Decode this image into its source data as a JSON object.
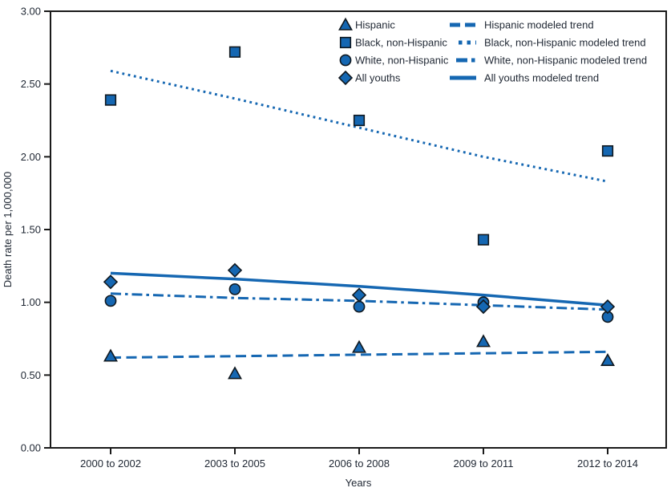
{
  "chart_data": {
    "type": "scatter",
    "title": "",
    "xlabel": "Years",
    "ylabel": "Death rate per 1,000,000",
    "categories": [
      "2000 to 2002",
      "2003 to 2005",
      "2006 to 2008",
      "2009 to 2011",
      "2012 to 2014"
    ],
    "ylim": [
      0.0,
      3.0
    ],
    "ytick_step": 0.5,
    "ytick_labels": [
      "0.00",
      "0.50",
      "1.00",
      "1.50",
      "2.00",
      "2.50",
      "3.00"
    ],
    "grid": false,
    "legend_position": "top-right-inside",
    "series": [
      {
        "name": "Hispanic",
        "marker": "triangle",
        "values": [
          0.63,
          0.51,
          0.69,
          0.73,
          0.6
        ]
      },
      {
        "name": "Black, non-Hispanic",
        "marker": "square",
        "values": [
          2.39,
          2.72,
          2.25,
          1.43,
          2.04
        ]
      },
      {
        "name": "White, non-Hispanic",
        "marker": "circle",
        "values": [
          1.01,
          1.09,
          0.97,
          1.0,
          0.9
        ]
      },
      {
        "name": "All youths",
        "marker": "diamond",
        "values": [
          1.14,
          1.22,
          1.05,
          0.97,
          0.97
        ]
      }
    ],
    "trend_series": [
      {
        "name": "Hispanic modeled trend",
        "style": "dashed",
        "values": [
          0.62,
          0.63,
          0.64,
          0.65,
          0.66
        ]
      },
      {
        "name": "Black, non-Hispanic modeled trend",
        "style": "dotted",
        "values": [
          2.59,
          2.4,
          2.2,
          2.0,
          1.83
        ]
      },
      {
        "name": "White, non-Hispanic modeled trend",
        "style": "dashdot",
        "values": [
          1.06,
          1.03,
          1.01,
          0.98,
          0.95
        ]
      },
      {
        "name": "All youths modeled trend",
        "style": "solid",
        "values": [
          1.2,
          1.16,
          1.11,
          1.05,
          0.98
        ]
      }
    ],
    "colors": {
      "accent": "#1567b2",
      "marker_outline": "#10181f",
      "axis": "#1a1a1a",
      "text": "#1f2733"
    }
  }
}
